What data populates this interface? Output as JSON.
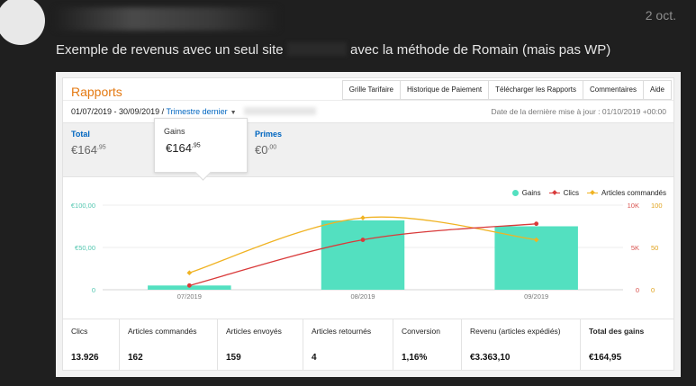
{
  "post": {
    "date": "2 oct.",
    "message_before": "Exemple de revenus avec un seul site",
    "message_after": "avec la méthode de Romain (mais pas WP)"
  },
  "report": {
    "title": "Rapports",
    "tabs": [
      "Grille Tarifaire",
      "Historique de Paiement",
      "Télécharger les Rapports",
      "Commentaires",
      "Aide"
    ],
    "date_range": "01/07/2019 - 30/09/2019 /",
    "period_link": "Trimestre dernier",
    "last_update": "Date de la dernière mise à jour : 01/10/2019 +00:00",
    "metrics": {
      "total": {
        "label": "Total",
        "whole": "€164",
        "fraction": ",95"
      },
      "gains": {
        "label": "Gains",
        "whole": "€164",
        "fraction": ",95"
      },
      "primes": {
        "label": "Primes",
        "whole": "€0",
        "fraction": ",00"
      }
    },
    "legend": {
      "gains": "Gains",
      "clics": "Clics",
      "articles": "Articles commandés"
    },
    "stats": [
      {
        "label": "Clics",
        "value": "13.926"
      },
      {
        "label": "Articles commandés",
        "value": "162"
      },
      {
        "label": "Articles envoyés",
        "value": "159"
      },
      {
        "label": "Articles retournés",
        "value": "4"
      },
      {
        "label": "Conversion",
        "value": "1,16%"
      },
      {
        "label": "Revenu (articles expédiés)",
        "value": "€3.363,10"
      },
      {
        "label": "Total des gains",
        "value": "€164,95"
      }
    ]
  },
  "colors": {
    "gains": "#53e0c0",
    "clics": "#d93a3a",
    "articles": "#f0b323",
    "orange": "#e47911",
    "link": "#0066c0"
  },
  "chart_data": {
    "type": "bar",
    "categories": [
      "07/2019",
      "08/2019",
      "09/2019"
    ],
    "series": [
      {
        "name": "Gains",
        "type": "bar",
        "axis": "left",
        "values": [
          5,
          82,
          75
        ]
      },
      {
        "name": "Clics",
        "type": "line",
        "axis": "right1",
        "values": [
          500,
          5900,
          7800
        ]
      },
      {
        "name": "Articles commandés",
        "type": "line",
        "axis": "right2",
        "values": [
          20,
          85,
          59
        ]
      }
    ],
    "y_left": {
      "ticks": [
        "€100,00",
        "€50,00",
        "0"
      ],
      "range": [
        0,
        100
      ]
    },
    "y_right1": {
      "ticks": [
        "10K",
        "5K",
        "0"
      ],
      "range": [
        0,
        10000
      ]
    },
    "y_right2": {
      "ticks": [
        "100",
        "50",
        "0"
      ],
      "range": [
        0,
        100
      ]
    },
    "grid": true,
    "legend": "top-right"
  }
}
